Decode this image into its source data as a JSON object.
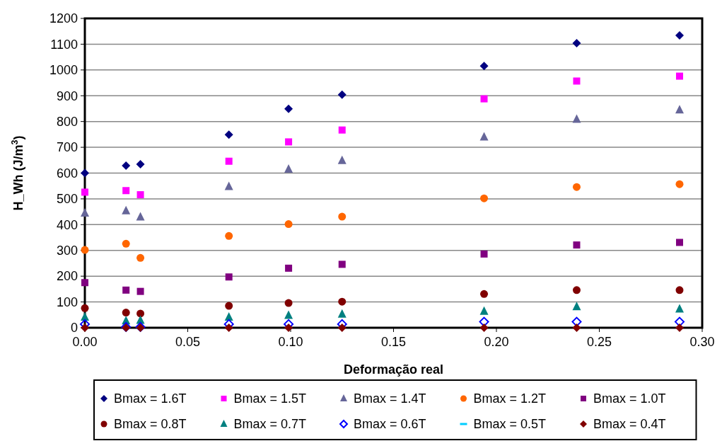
{
  "chart_data": {
    "type": "scatter",
    "xlabel": "Deformação real",
    "ylabel": "H_Wh (J/m$^{3}$)",
    "x": [
      0,
      0.02,
      0.027,
      0.07,
      0.099,
      0.125,
      0.194,
      0.239,
      0.289
    ],
    "xlim": [
      0,
      0.3
    ],
    "xticks": [
      {
        "value": 0,
        "label": "0.00"
      },
      {
        "value": 0.05,
        "label": "0.05"
      },
      {
        "value": 0.1,
        "label": "0.10"
      },
      {
        "value": 0.15,
        "label": "0.15"
      },
      {
        "value": 0.2,
        "label": "0.20"
      },
      {
        "value": 0.25,
        "label": "0.25"
      },
      {
        "value": 0.3,
        "label": "0.30"
      }
    ],
    "ylim": [
      0,
      1200
    ],
    "yticks": [
      0,
      100,
      200,
      300,
      400,
      500,
      600,
      700,
      800,
      900,
      1000,
      1100,
      1200
    ],
    "grid": "y",
    "legend": "bottom",
    "series": [
      {
        "name": "Bmax = 1.6T",
        "color": "#000080",
        "marker": "diamond",
        "values": [
          600,
          629,
          634,
          749,
          849,
          904,
          1015,
          1104,
          1134
        ]
      },
      {
        "name": "Bmax = 1.5T",
        "color": "#ff00ff",
        "marker": "square",
        "values": [
          526,
          532,
          516,
          646,
          721,
          767,
          888,
          957,
          976
        ]
      },
      {
        "name": "Bmax = 1.4T",
        "color": "#666699",
        "marker": "triangle",
        "values": [
          445,
          454,
          430,
          548,
          615,
          649,
          740,
          809,
          845
        ]
      },
      {
        "name": "Bmax = 1.2T",
        "color": "#ff6600",
        "marker": "circle",
        "values": [
          302,
          326,
          271,
          356,
          402,
          431,
          502,
          546,
          557
        ]
      },
      {
        "name": "Bmax = 1.0T",
        "color": "#800080",
        "marker": "square",
        "values": [
          175,
          146,
          141,
          197,
          231,
          246,
          286,
          321,
          331
        ]
      },
      {
        "name": "Bmax = 0.8T",
        "color": "#800000",
        "marker": "circle",
        "values": [
          76,
          59,
          55,
          85,
          96,
          101,
          131,
          146,
          146
        ]
      },
      {
        "name": "Bmax = 0.7T",
        "color": "#008080",
        "marker": "triangle",
        "values": [
          41,
          27,
          29,
          41,
          48,
          53,
          64,
          82,
          73
        ]
      },
      {
        "name": "Bmax = 0.6T",
        "color": "#0000ff",
        "marker": "diamond",
        "values": [
          14,
          3,
          3,
          14,
          14,
          14,
          23,
          23,
          23
        ]
      },
      {
        "name": "Bmax = 0.5T",
        "color": "#00ccff",
        "marker": "none",
        "values": [
          null,
          null,
          null,
          null,
          null,
          null,
          null,
          null,
          null
        ]
      },
      {
        "name": "Bmax = 0.4T",
        "color": "#800000",
        "marker": "diamond",
        "values": [
          0,
          0,
          0,
          0,
          0,
          0,
          0,
          0,
          0
        ]
      }
    ]
  }
}
